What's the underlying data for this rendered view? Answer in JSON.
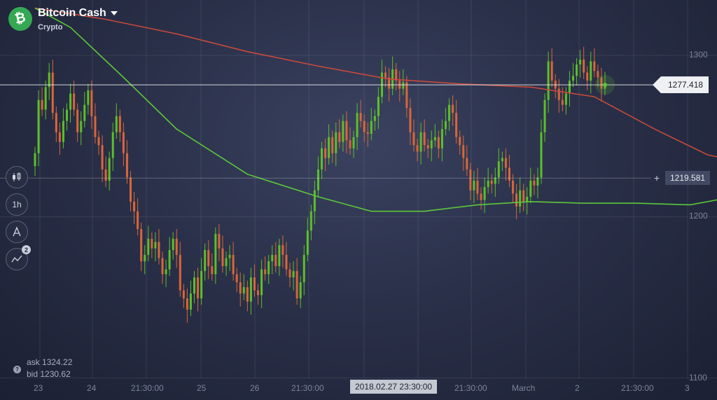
{
  "asset": {
    "title": "Bitcoin Cash",
    "category": "Crypto",
    "logo_glyph": "₿"
  },
  "toolbar": {
    "buttons": [
      {
        "name": "chart-type-button",
        "icon": "candlestick-icon",
        "label": ""
      },
      {
        "name": "timeframe-button",
        "icon": "",
        "label": "1h"
      },
      {
        "name": "drawing-tools-button",
        "icon": "drawing-icon",
        "label": ""
      },
      {
        "name": "indicators-button",
        "icon": "indicators-icon",
        "label": "",
        "badge": "2"
      }
    ]
  },
  "quotes": {
    "ask_label": "ask",
    "ask_value": "1324.22",
    "bid_label": "bid",
    "bid_value": "1230.62"
  },
  "price_tags": {
    "current": "1277.418",
    "crosshair": "1219.581"
  },
  "y_axis": {
    "ticks": [
      "1300",
      "1200",
      "1100"
    ]
  },
  "x_axis": {
    "ticks": [
      "23",
      "24",
      "21:30:00",
      "25",
      "26",
      "21:30:00",
      "21:30:00",
      "March",
      "2",
      "21:30:00",
      "3"
    ],
    "highlight": "2018.02.27 23:30:00"
  },
  "colors": {
    "bull": "#5cbf2a",
    "bear": "#d9663a",
    "ma_fast": "#5cc83a",
    "ma_slow": "#c84a3a",
    "logo": "#34a853"
  },
  "chart_data": {
    "type": "candlestick",
    "ylim": [
      1082,
      1330
    ],
    "current_price": 1277.418,
    "crosshair_price": 1219.581,
    "close": [
      1235,
      1268,
      1262,
      1276,
      1285,
      1260,
      1248,
      1242,
      1255,
      1262,
      1272,
      1262,
      1248,
      1255,
      1265,
      1274,
      1258,
      1245,
      1240,
      1225,
      1218,
      1232,
      1248,
      1258,
      1248,
      1235,
      1220,
      1205,
      1199,
      1188,
      1168,
      1172,
      1182,
      1176,
      1180,
      1170,
      1160,
      1163,
      1175,
      1182,
      1172,
      1150,
      1145,
      1138,
      1148,
      1158,
      1145,
      1162,
      1175,
      1165,
      1160,
      1185,
      1176,
      1165,
      1170,
      1172,
      1160,
      1155,
      1148,
      1152,
      1143,
      1158,
      1150,
      1147,
      1163,
      1160,
      1168,
      1172,
      1165,
      1178,
      1172,
      1163,
      1158,
      1162,
      1145,
      1155,
      1172,
      1187,
      1199,
      1212,
      1225,
      1238,
      1232,
      1245,
      1235,
      1248,
      1242,
      1255,
      1243,
      1238,
      1245,
      1260,
      1255,
      1248,
      1247,
      1255,
      1258,
      1270,
      1285,
      1282,
      1275,
      1287,
      1280,
      1275,
      1279,
      1263,
      1248,
      1240,
      1236,
      1248,
      1240,
      1238,
      1243,
      1245,
      1238,
      1250,
      1255,
      1265,
      1260,
      1245,
      1240,
      1232,
      1225,
      1212,
      1218,
      1210,
      1206,
      1214,
      1218,
      1216,
      1220,
      1230,
      1232,
      1226,
      1218,
      1210,
      1202,
      1212,
      1205,
      1208,
      1218,
      1215,
      1220,
      1248,
      1268,
      1292,
      1280,
      1275,
      1268,
      1265,
      1272,
      1280,
      1283,
      1290,
      1293,
      1285,
      1280,
      1292,
      1286,
      1282,
      1275,
      1277.4
    ],
    "ma_fast": [
      [
        0,
        1325
      ],
      [
        10,
        1313
      ],
      [
        25,
        1282
      ],
      [
        40,
        1250
      ],
      [
        60,
        1222
      ],
      [
        80,
        1208
      ],
      [
        95,
        1199
      ],
      [
        110,
        1199
      ],
      [
        125,
        1203
      ],
      [
        140,
        1205
      ],
      [
        155,
        1204
      ],
      [
        170,
        1204
      ],
      [
        185,
        1203
      ],
      [
        200,
        1209
      ],
      [
        210,
        1217
      ],
      [
        220,
        1226
      ],
      [
        230,
        1232
      ],
      [
        235,
        1234
      ]
    ],
    "ma_slow": [
      [
        0,
        1325
      ],
      [
        20,
        1318
      ],
      [
        40,
        1309
      ],
      [
        60,
        1298
      ],
      [
        80,
        1289
      ],
      [
        100,
        1281
      ],
      [
        120,
        1278
      ],
      [
        140,
        1276
      ],
      [
        158,
        1270
      ],
      [
        175,
        1250
      ],
      [
        190,
        1234
      ],
      [
        205,
        1227
      ],
      [
        220,
        1222
      ],
      [
        235,
        1220
      ]
    ]
  }
}
